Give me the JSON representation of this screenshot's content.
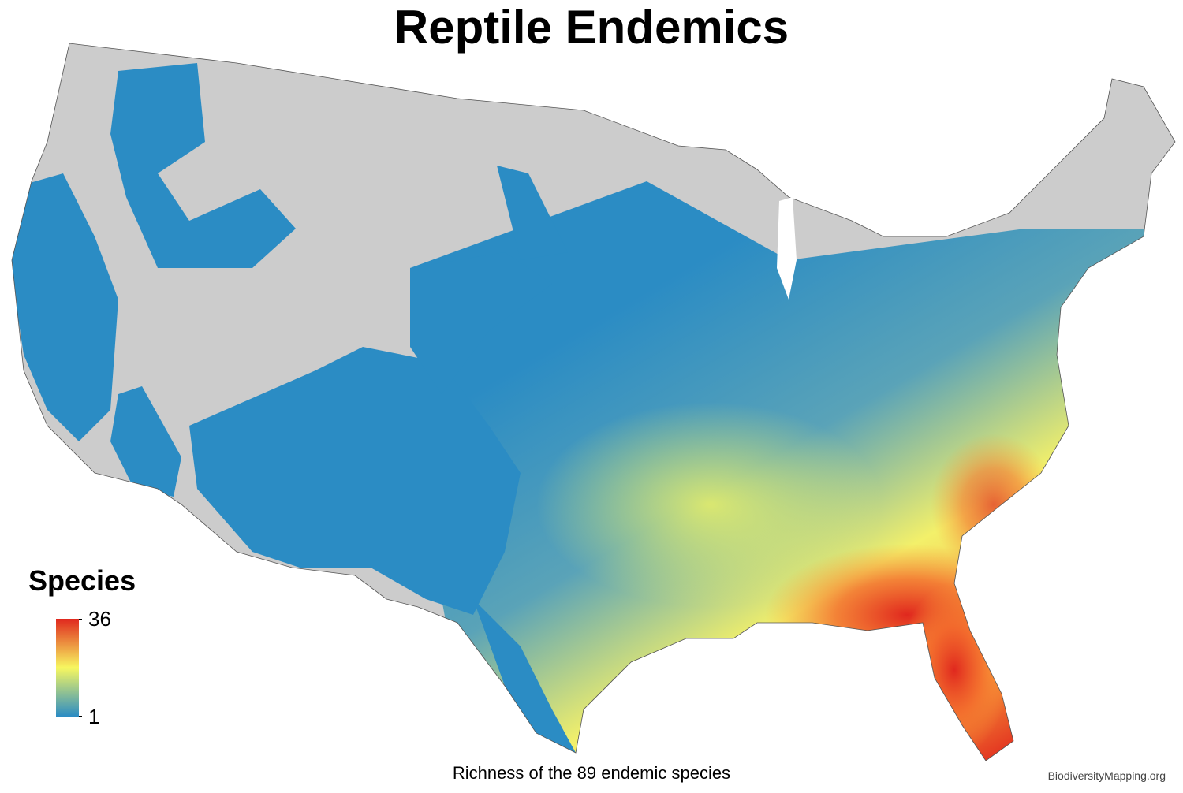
{
  "title": "Reptile Endemics",
  "legend": {
    "title": "Species",
    "max": "36",
    "min": "1"
  },
  "caption": "Richness of the 89 endemic species",
  "credit": "BiodiversityMapping.org",
  "colors": {
    "land": "#cccccc",
    "low": "#2b8cc4",
    "mid": "#f7f760",
    "high": "#e0281e",
    "orange": "#f89a38"
  }
}
